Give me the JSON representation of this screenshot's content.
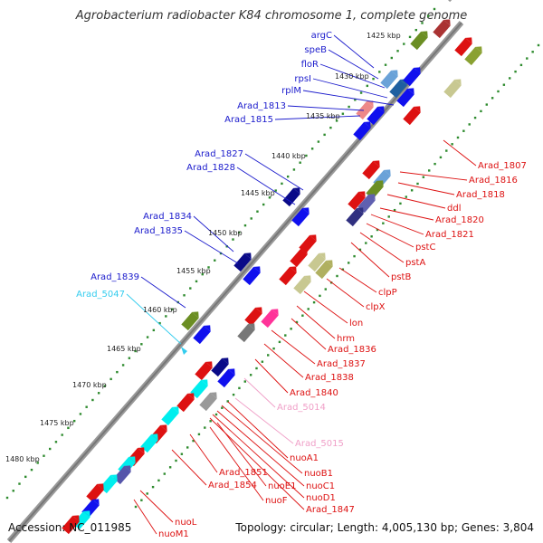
{
  "title": "Agrobacterium radiobacter K84 chromosome 1, complete genome",
  "footer": {
    "accession": "Accession: NC_011985",
    "topology": "Topology: circular; Length: 4,005,130 bp; Genes: 3,804"
  },
  "scale_labels": [
    "1425 kbp",
    "1430 kbp",
    "1435 kbp",
    "1440 kbp",
    "1445 kbp",
    "1450 kbp",
    "1455 kbp",
    "1460 kbp",
    "1465 kbp",
    "1470 kbp",
    "1475 kbp",
    "1480 kbp"
  ],
  "left_labels": [
    {
      "text": "argC",
      "color": "#1a1acc"
    },
    {
      "text": "speB",
      "color": "#1a1acc"
    },
    {
      "text": "floR",
      "color": "#1a1acc"
    },
    {
      "text": "rpsI",
      "color": "#1a1acc"
    },
    {
      "text": "rplM",
      "color": "#1a1acc"
    },
    {
      "text": "Arad_1813",
      "color": "#1a1acc"
    },
    {
      "text": "Arad_1815",
      "color": "#1a1acc"
    },
    {
      "text": "Arad_1827",
      "color": "#1a1acc"
    },
    {
      "text": "Arad_1828",
      "color": "#1a1acc"
    },
    {
      "text": "Arad_1834",
      "color": "#1a1acc"
    },
    {
      "text": "Arad_1835",
      "color": "#1a1acc"
    },
    {
      "text": "Arad_1839",
      "color": "#1a1acc"
    },
    {
      "text": "Arad_5047",
      "color": "#33ccee"
    }
  ],
  "right_labels": [
    {
      "text": "Arad_1807",
      "color": "#dd1111"
    },
    {
      "text": "Arad_1816",
      "color": "#dd1111"
    },
    {
      "text": "Arad_1818",
      "color": "#dd1111"
    },
    {
      "text": "ddl",
      "color": "#dd1111"
    },
    {
      "text": "Arad_1820",
      "color": "#dd1111"
    },
    {
      "text": "Arad_1821",
      "color": "#dd1111"
    },
    {
      "text": "pstC",
      "color": "#dd1111"
    },
    {
      "text": "pstA",
      "color": "#dd1111"
    },
    {
      "text": "pstB",
      "color": "#dd1111"
    },
    {
      "text": "clpP",
      "color": "#dd1111"
    },
    {
      "text": "clpX",
      "color": "#dd1111"
    },
    {
      "text": "lon",
      "color": "#dd1111"
    },
    {
      "text": "hrm",
      "color": "#dd1111"
    },
    {
      "text": "Arad_1836",
      "color": "#dd1111"
    },
    {
      "text": "Arad_1837",
      "color": "#dd1111"
    },
    {
      "text": "Arad_1838",
      "color": "#dd1111"
    },
    {
      "text": "Arad_1840",
      "color": "#dd1111"
    },
    {
      "text": "Arad_5014",
      "color": "#f0a0c8"
    },
    {
      "text": "Arad_5015",
      "color": "#f0a0c8"
    },
    {
      "text": "nuoA1",
      "color": "#dd1111"
    },
    {
      "text": "nuoB1",
      "color": "#dd1111"
    },
    {
      "text": "nuoC1",
      "color": "#dd1111"
    },
    {
      "text": "nuoD1",
      "color": "#dd1111"
    },
    {
      "text": "Arad_1847",
      "color": "#dd1111"
    },
    {
      "text": "Arad_1851",
      "color": "#dd1111"
    },
    {
      "text": "Arad_1854",
      "color": "#dd1111"
    },
    {
      "text": "nuoE1",
      "color": "#dd1111"
    },
    {
      "text": "nuoF",
      "color": "#dd1111"
    },
    {
      "text": "nuoL",
      "color": "#dd1111"
    },
    {
      "text": "nuoM1",
      "color": "#dd1111"
    }
  ]
}
